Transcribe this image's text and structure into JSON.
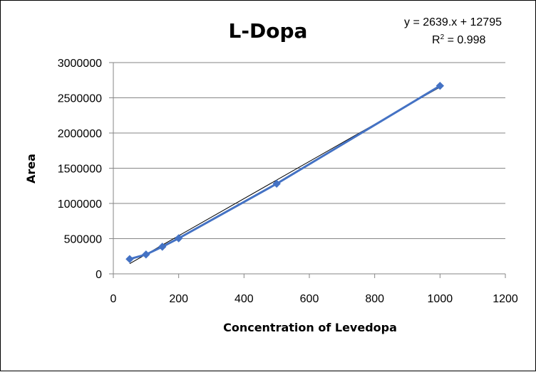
{
  "chart_data": {
    "type": "scatter",
    "title": "L-Dopa",
    "xlabel": "Concentration of Levedopa",
    "ylabel": "Area",
    "xlim": [
      0,
      1200
    ],
    "ylim": [
      0,
      3000000
    ],
    "x_ticks": [
      0,
      200,
      400,
      600,
      800,
      1000,
      1200
    ],
    "y_ticks": [
      0,
      500000,
      1000000,
      1500000,
      2000000,
      2500000,
      3000000
    ],
    "x_tick_labels": [
      "0",
      "200",
      "400",
      "600",
      "800",
      "1000",
      "1200"
    ],
    "y_tick_labels": [
      "0",
      "500000",
      "1000000",
      "1500000",
      "2000000",
      "2500000",
      "3000000"
    ],
    "grid": "horizontal",
    "legend": "none",
    "series": [
      {
        "x": [
          50,
          100,
          150,
          200,
          500,
          1000
        ],
        "y": [
          210000,
          275000,
          385000,
          505000,
          1280000,
          2670000
        ],
        "color": "#4472C4",
        "marker": "diamond",
        "connected": true
      }
    ],
    "trendline": {
      "type": "linear",
      "slope": 2639,
      "intercept": 12795,
      "x_range": [
        50,
        1000
      ],
      "color": "#000000",
      "equation_label": "y = 2639.x + 12795",
      "r2_label_prefix": "R",
      "r2_label_suffix": " = 0.998",
      "r2_superscript": "2"
    }
  }
}
